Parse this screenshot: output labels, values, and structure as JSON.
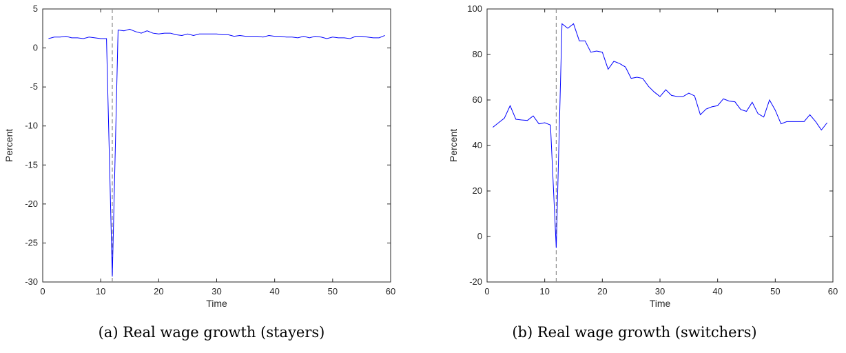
{
  "chart_data": [
    {
      "type": "line",
      "caption": "(a) Real wage growth (stayers)",
      "xlabel": "Time",
      "ylabel": "Percent",
      "xlim": [
        0,
        60
      ],
      "ylim": [
        -30,
        5
      ],
      "xticks": [
        0,
        10,
        20,
        30,
        40,
        50,
        60
      ],
      "yticks": [
        -30,
        -25,
        -20,
        -15,
        -10,
        -5,
        0,
        5
      ],
      "vline": 12,
      "grid": false,
      "line_color": "#0000ff",
      "vline_color": "#8c8c8c",
      "x": [
        1,
        2,
        3,
        4,
        5,
        6,
        7,
        8,
        9,
        10,
        11,
        12,
        13,
        14,
        15,
        16,
        17,
        18,
        19,
        20,
        21,
        22,
        23,
        24,
        25,
        26,
        27,
        28,
        29,
        30,
        31,
        32,
        33,
        34,
        35,
        36,
        37,
        38,
        39,
        40,
        41,
        42,
        43,
        44,
        45,
        46,
        47,
        48,
        49,
        50,
        51,
        52,
        53,
        54,
        55,
        56,
        57,
        58,
        59
      ],
      "values": [
        1.2,
        1.4,
        1.4,
        1.5,
        1.3,
        1.3,
        1.2,
        1.4,
        1.3,
        1.2,
        1.2,
        -29.3,
        2.3,
        2.2,
        2.4,
        2.1,
        1.9,
        2.2,
        1.9,
        1.8,
        1.9,
        1.9,
        1.7,
        1.6,
        1.8,
        1.6,
        1.8,
        1.8,
        1.8,
        1.8,
        1.7,
        1.7,
        1.5,
        1.6,
        1.5,
        1.5,
        1.5,
        1.4,
        1.6,
        1.5,
        1.5,
        1.4,
        1.4,
        1.3,
        1.5,
        1.3,
        1.5,
        1.4,
        1.2,
        1.4,
        1.3,
        1.3,
        1.2,
        1.5,
        1.5,
        1.4,
        1.3,
        1.3,
        1.6
      ]
    },
    {
      "type": "line",
      "caption": "(b) Real wage growth (switchers)",
      "xlabel": "Time",
      "ylabel": "Percent",
      "xlim": [
        0,
        60
      ],
      "ylim": [
        -20,
        100
      ],
      "xticks": [
        0,
        10,
        20,
        30,
        40,
        50,
        60
      ],
      "yticks": [
        -20,
        0,
        20,
        40,
        60,
        80,
        100
      ],
      "vline": 12,
      "grid": false,
      "line_color": "#0000ff",
      "vline_color": "#8c8c8c",
      "x": [
        1,
        2,
        3,
        4,
        5,
        6,
        7,
        8,
        9,
        10,
        11,
        12,
        13,
        14,
        15,
        16,
        17,
        18,
        19,
        20,
        21,
        22,
        23,
        24,
        25,
        26,
        27,
        28,
        29,
        30,
        31,
        32,
        33,
        34,
        35,
        36,
        37,
        38,
        39,
        40,
        41,
        42,
        43,
        44,
        45,
        46,
        47,
        48,
        49,
        50,
        51,
        52,
        53,
        54,
        55,
        56,
        57,
        58,
        59
      ],
      "values": [
        48,
        50,
        52,
        57.5,
        51.5,
        51.2,
        51,
        53,
        49.5,
        50,
        49,
        -5,
        93.5,
        91.5,
        93.5,
        86,
        86,
        81,
        81.5,
        81,
        73.5,
        77,
        76,
        74.5,
        69.5,
        70,
        69.5,
        66,
        63.5,
        61.5,
        64.5,
        62,
        61.5,
        61.5,
        63,
        61.8,
        53.5,
        56,
        57,
        57.5,
        60.5,
        59.5,
        59.2,
        55.8,
        55,
        59,
        54,
        52.5,
        60,
        55.5,
        49.5,
        50.5,
        50.5,
        50.5,
        50.5,
        53.5,
        50.5,
        46.8,
        50
      ]
    }
  ]
}
